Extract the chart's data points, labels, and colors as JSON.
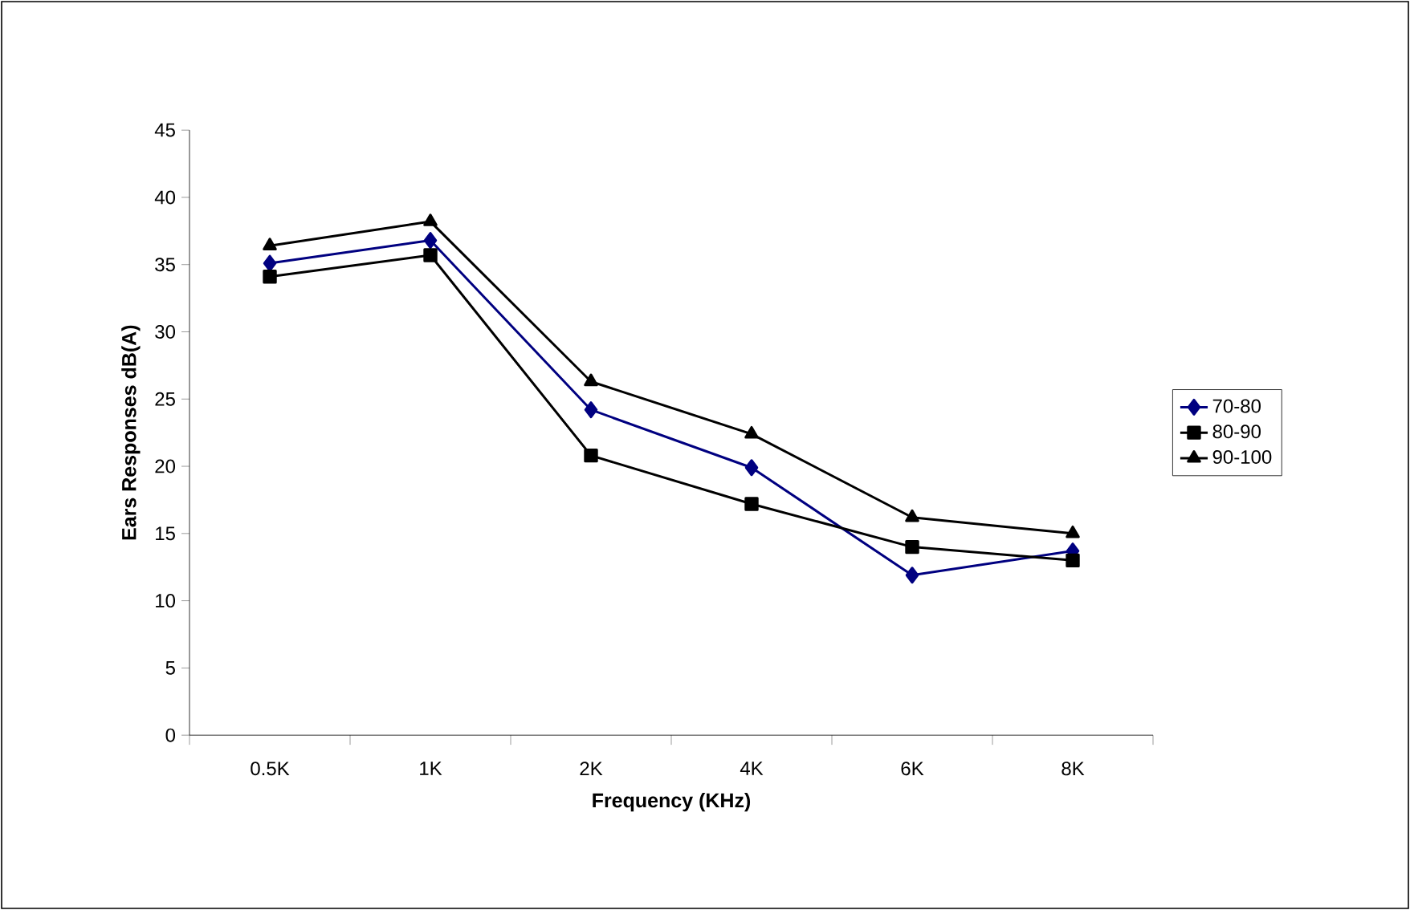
{
  "chart_data": {
    "type": "line",
    "xlabel": "Frequency (KHz)",
    "ylabel": "Ears Responses dB(A)",
    "categories": [
      "0.5K",
      "1K",
      "2K",
      "4K",
      "6K",
      "8K"
    ],
    "series": [
      {
        "name": "70-80",
        "color": "#000080",
        "marker": "diamond",
        "values": [
          35.1,
          36.8,
          24.2,
          19.9,
          11.9,
          13.7
        ]
      },
      {
        "name": "80-90",
        "color": "#000000",
        "marker": "square",
        "values": [
          34.1,
          35.7,
          20.8,
          17.2,
          14.0,
          13.0
        ]
      },
      {
        "name": "90-100",
        "color": "#000000",
        "marker": "triangle",
        "values": [
          36.4,
          38.2,
          26.3,
          22.4,
          16.2,
          15.0
        ]
      }
    ],
    "ylim": [
      0,
      45
    ],
    "yticks": [
      0,
      5,
      10,
      15,
      20,
      25,
      30,
      35,
      40,
      45
    ],
    "grid": false,
    "legend": "right",
    "line_style": "solid"
  }
}
